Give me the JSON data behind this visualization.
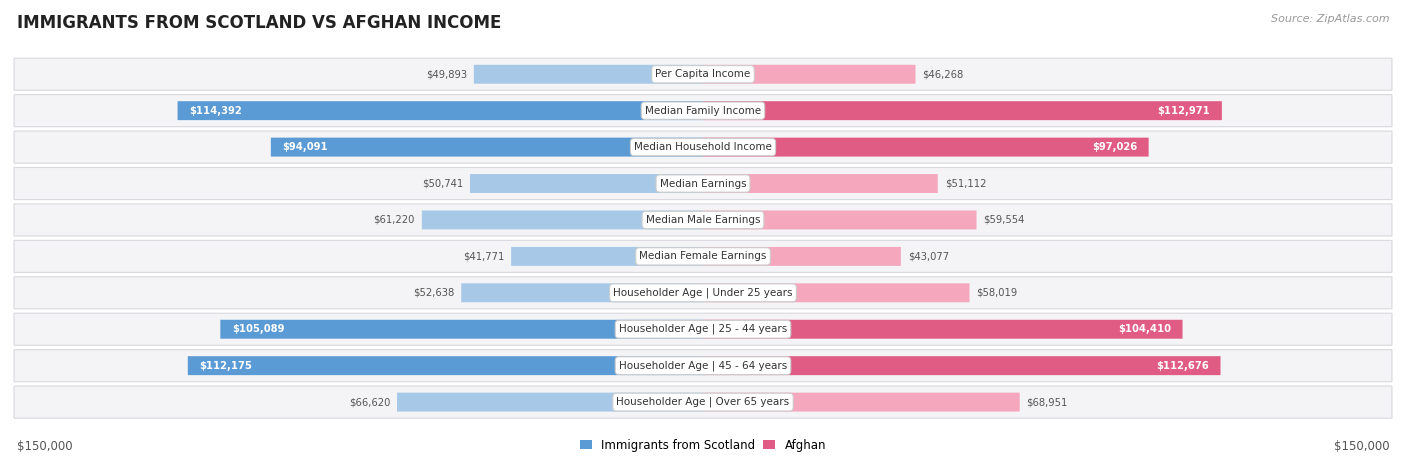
{
  "title": "IMMIGRANTS FROM SCOTLAND VS AFGHAN INCOME",
  "source": "Source: ZipAtlas.com",
  "categories": [
    "Per Capita Income",
    "Median Family Income",
    "Median Household Income",
    "Median Earnings",
    "Median Male Earnings",
    "Median Female Earnings",
    "Householder Age | Under 25 years",
    "Householder Age | 25 - 44 years",
    "Householder Age | 45 - 64 years",
    "Householder Age | Over 65 years"
  ],
  "scotland_values": [
    49893,
    114392,
    94091,
    50741,
    61220,
    41771,
    52638,
    105089,
    112175,
    66620
  ],
  "afghan_values": [
    46268,
    112971,
    97026,
    51112,
    59554,
    43077,
    58019,
    104410,
    112676,
    68951
  ],
  "scotland_labels": [
    "$49,893",
    "$114,392",
    "$94,091",
    "$50,741",
    "$61,220",
    "$41,771",
    "$52,638",
    "$105,089",
    "$112,175",
    "$66,620"
  ],
  "afghan_labels": [
    "$46,268",
    "$112,971",
    "$97,026",
    "$51,112",
    "$59,554",
    "$43,077",
    "$58,019",
    "$104,410",
    "$112,676",
    "$68,951"
  ],
  "max_value": 150000,
  "scotland_color_light": "#a8c8e8",
  "scotland_color_dark": "#5b9bd5",
  "afghan_color_light": "#f5a7be",
  "afghan_color_dark": "#e05c84",
  "row_bg_even": "#f4f4f6",
  "row_bg_odd": "#f4f4f6",
  "row_border_color": "#d8d8de",
  "background_color": "#ffffff",
  "threshold_dark_label": 80000,
  "xlabel_left": "$150,000",
  "xlabel_right": "$150,000",
  "legend_label_scotland": "Immigrants from Scotland",
  "legend_label_afghan": "Afghan",
  "label_inside_color": "#ffffff",
  "label_outside_color": "#555555"
}
